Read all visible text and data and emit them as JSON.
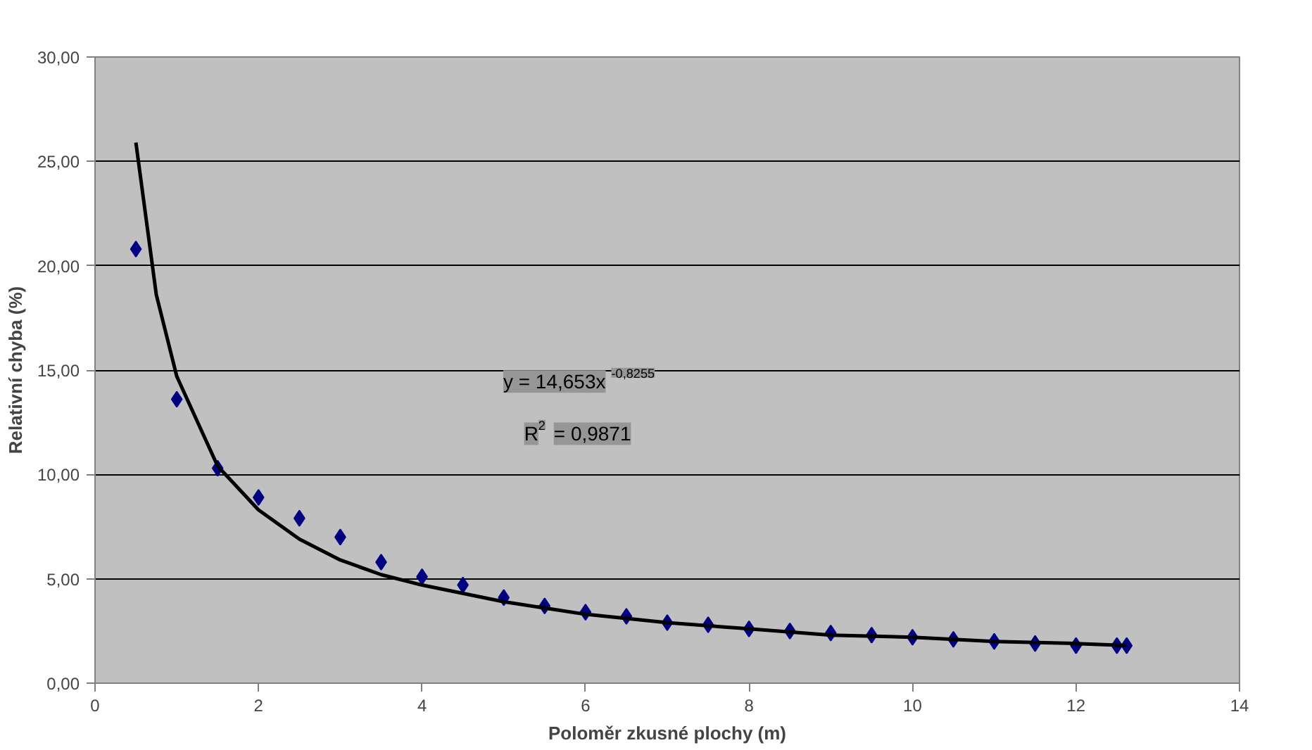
{
  "chart_data": {
    "type": "scatter",
    "xlabel": "Poloměr zkusné plochy (m)",
    "ylabel": "Relativní chyba (%)",
    "xlim": [
      0,
      14
    ],
    "xticks": [
      0,
      2,
      4,
      6,
      8,
      10,
      12,
      14
    ],
    "ylim": [
      0,
      30
    ],
    "yticks": [
      {
        "value": 0,
        "label": "0,00"
      },
      {
        "value": 5,
        "label": "5,00"
      },
      {
        "value": 10,
        "label": "10,00"
      },
      {
        "value": 15,
        "label": "15,00"
      },
      {
        "value": 20,
        "label": "20,00"
      },
      {
        "value": 25,
        "label": "25,00"
      },
      {
        "value": 30,
        "label": "30,00"
      }
    ],
    "grid": "y",
    "marker": "diamond",
    "series": [
      {
        "type": "scatter",
        "color": "#000080",
        "x": [
          0.5,
          1,
          1.5,
          2,
          2.5,
          3,
          3.5,
          4,
          4.5,
          5,
          5.5,
          6,
          6.5,
          7,
          7.5,
          8,
          8.5,
          9,
          9.5,
          10,
          10.5,
          11,
          11.5,
          12,
          12.5,
          12.62
        ],
        "values": [
          20.8,
          13.6,
          10.3,
          8.9,
          7.9,
          7.0,
          5.8,
          5.1,
          4.7,
          4.1,
          3.7,
          3.4,
          3.2,
          2.9,
          2.8,
          2.6,
          2.5,
          2.4,
          2.3,
          2.2,
          2.1,
          2.0,
          1.9,
          1.8,
          1.8,
          1.8
        ]
      },
      {
        "type": "line",
        "color": "#000000",
        "marker": "none",
        "line_style": "solid",
        "x": [
          0.5,
          0.75,
          1,
          1.5,
          2,
          2.5,
          3,
          3.5,
          4,
          5,
          6,
          7,
          8,
          9,
          10,
          11,
          12,
          12.62
        ],
        "values": [
          25.9,
          18.6,
          14.7,
          10.4,
          8.3,
          6.9,
          5.9,
          5.2,
          4.7,
          3.9,
          3.3,
          2.9,
          2.6,
          2.3,
          2.2,
          2.0,
          1.9,
          1.8
        ]
      }
    ],
    "annotations": [
      "y = 14,653x$^{-0,8255}$",
      "R$^{2}$ = 0,9871"
    ]
  }
}
